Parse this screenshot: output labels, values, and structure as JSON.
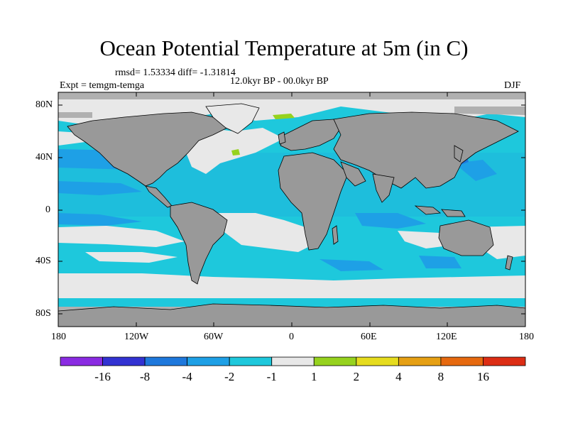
{
  "title": "Ocean Potential Temperature at 5m (in C)",
  "stats": "rmsd= 1.53334 diff= -1.31814",
  "experiment": "Expt = temgm-temga",
  "period": "12.0kyr BP - 00.0kyr BP",
  "season": "DJF",
  "latitude_ticks": [
    "80N",
    "40N",
    "0",
    "40S",
    "80S"
  ],
  "longitude_ticks": [
    "180",
    "120W",
    "60W",
    "0",
    "60E",
    "120E",
    "180"
  ],
  "colorbar": {
    "colors": [
      "#8a2be2",
      "#3232d2",
      "#1e78dc",
      "#1ea0e6",
      "#1ec8dc",
      "#e8e8e8",
      "#96d21e",
      "#e6dc1e",
      "#e6a014",
      "#e6690f",
      "#dc2d14"
    ],
    "labels": [
      "-16",
      "-8",
      "-4",
      "-2",
      "-1",
      "1",
      "2",
      "4",
      "8",
      "16"
    ]
  },
  "palette": {
    "ocean_anomaly": "#1ec8dc",
    "ocean_warm_light": "#e8e8e8",
    "land": "#999999",
    "sea_ice_mask": "#b0b0b0"
  }
}
